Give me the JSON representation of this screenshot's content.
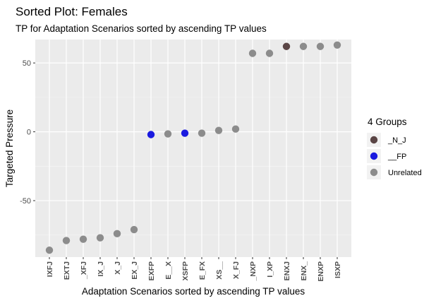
{
  "chart_data": {
    "type": "scatter",
    "title": "Sorted Plot: Females",
    "subtitle": "TP for Adaptation Scenarios sorted by ascending TP values",
    "xlabel": "Adaptation Scenarios sorted by ascending TP values",
    "ylabel": "Targeted Pressure",
    "ylim": [
      -91,
      67
    ],
    "yticks": [
      -50,
      0,
      50
    ],
    "grid": true,
    "categories": [
      "IXFJ",
      "EXTJ",
      "_XFJ",
      "IX_J",
      "X_J",
      "EX_J",
      "EXFP",
      "E__X",
      "XSFP",
      "E_FX",
      "XS__",
      "X_FJ",
      "_NXP",
      "I_XP",
      "ENXJ",
      "ENX_",
      "ENXP",
      "ISXP"
    ],
    "values": [
      -86,
      -79,
      -78,
      -77,
      -74,
      -71,
      -2,
      -1.5,
      -1,
      -1,
      1,
      2,
      57,
      57,
      62,
      62,
      62,
      63
    ],
    "groups": [
      "Unrelated",
      "Unrelated",
      "Unrelated",
      "Unrelated",
      "Unrelated",
      "Unrelated",
      "__FP",
      "Unrelated",
      "__FP",
      "Unrelated",
      "Unrelated",
      "Unrelated",
      "Unrelated",
      "Unrelated",
      "_N_J",
      "Unrelated",
      "Unrelated",
      "Unrelated"
    ],
    "legend": {
      "title": "4 Groups",
      "placement": "right",
      "entries": [
        {
          "name": "_N_J",
          "color": "#5a4545"
        },
        {
          "name": "__FP",
          "color": "#1a1adf"
        },
        {
          "name": "Unrelated",
          "color": "#8c8c8c"
        }
      ]
    },
    "panel_color": "#ebebeb"
  }
}
